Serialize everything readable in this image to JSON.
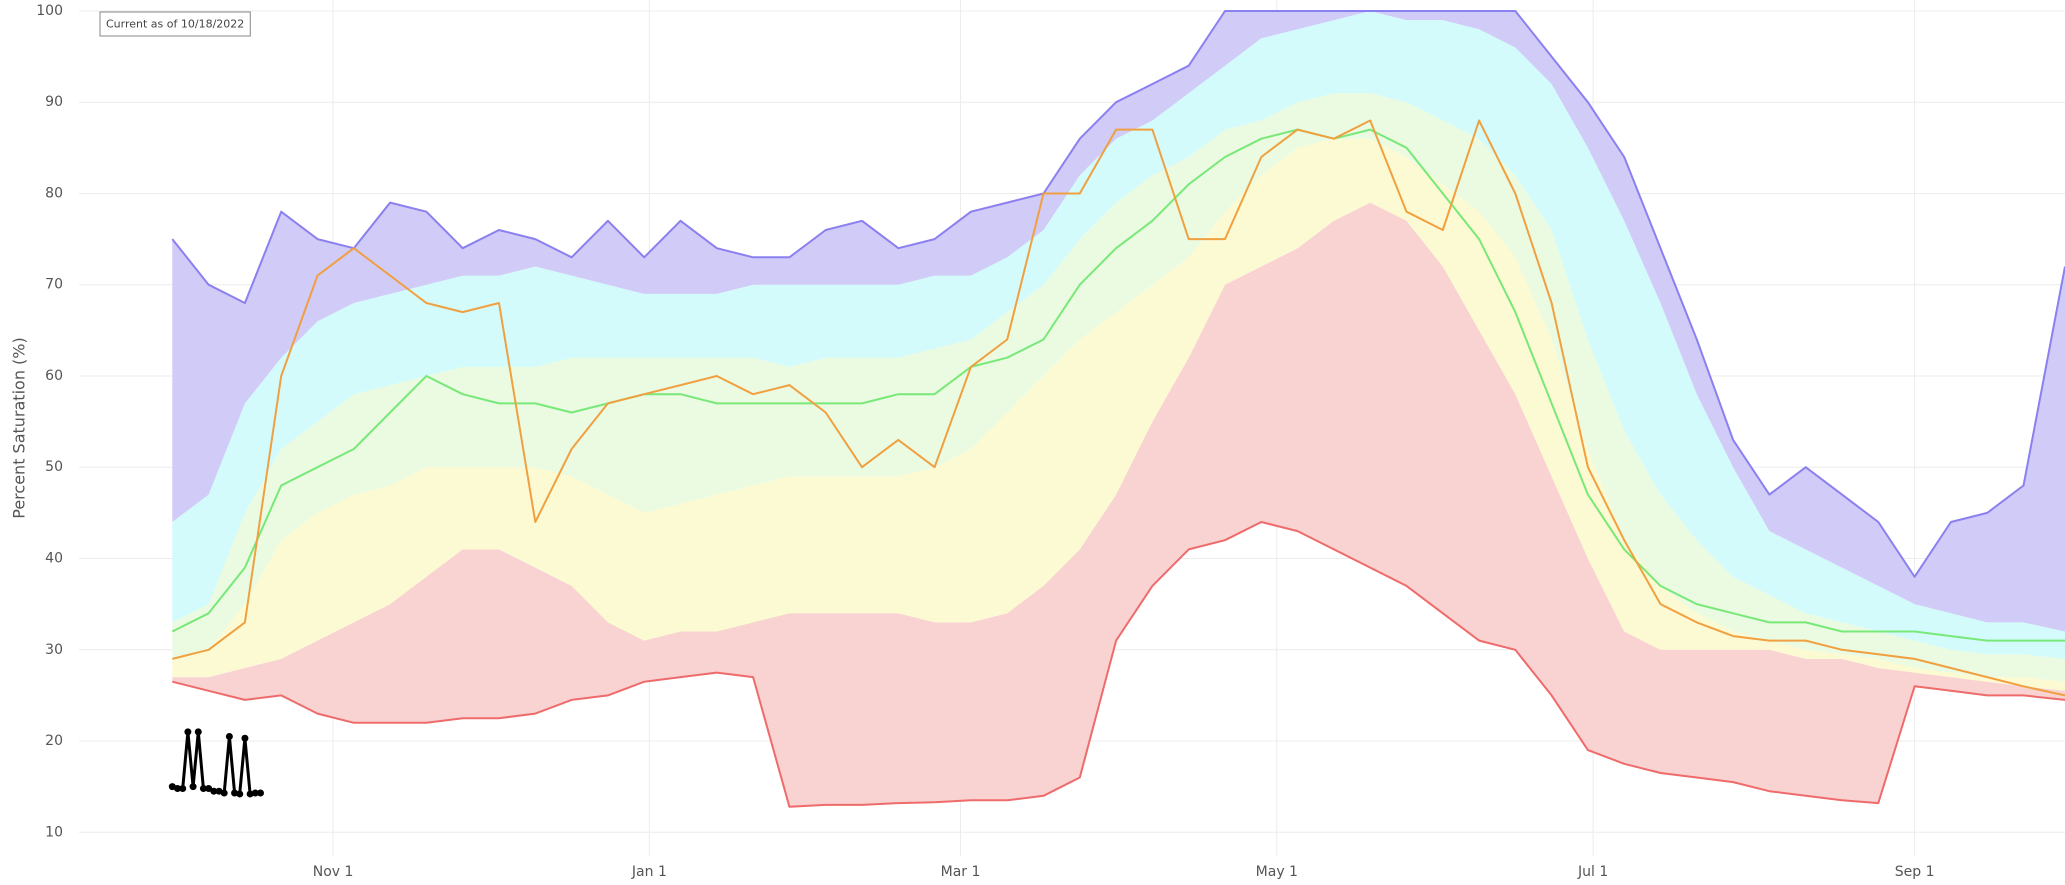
{
  "chart_data": {
    "type": "line",
    "annotation": "Current as of 10/18/2022",
    "y_label": "Percent Saturation (%)",
    "x": [
      "Oct 1",
      "Oct 8",
      "Oct 15",
      "Oct 22",
      "Oct 29",
      "Nov 5",
      "Nov 12",
      "Nov 19",
      "Nov 26",
      "Dec 3",
      "Dec 10",
      "Dec 17",
      "Dec 24",
      "Dec 31",
      "Jan 7",
      "Jan 14",
      "Jan 21",
      "Jan 28",
      "Feb 4",
      "Feb 11",
      "Feb 18",
      "Feb 25",
      "Mar 3",
      "Mar 10",
      "Mar 17",
      "Mar 24",
      "Mar 31",
      "Apr 7",
      "Apr 14",
      "Apr 21",
      "Apr 28",
      "May 5",
      "May 12",
      "May 19",
      "May 26",
      "Jun 2",
      "Jun 9",
      "Jun 16",
      "Jun 23",
      "Jun 30",
      "Jul 7",
      "Jul 14",
      "Jul 21",
      "Jul 28",
      "Aug 4",
      "Aug 11",
      "Aug 18",
      "Aug 25",
      "Sep 1",
      "Sep 8",
      "Sep 15",
      "Sep 22",
      "Sep 30"
    ],
    "series": [
      {
        "color": "#ef6b6b",
        "values": [
          26.5,
          25.5,
          24.5,
          25,
          23,
          22,
          22,
          22,
          22.5,
          22.5,
          23,
          24.5,
          25,
          26.5,
          27,
          27.5,
          27,
          12.8,
          13,
          13,
          13.2,
          13.3,
          13.5,
          13.5,
          14,
          16,
          31,
          37,
          41,
          42,
          44,
          43,
          41,
          39,
          37,
          34,
          31,
          30,
          25,
          19,
          17.5,
          16.5,
          16,
          15.5,
          14.5,
          14,
          13.5,
          13.2,
          26,
          25.5,
          25,
          25,
          24.5
        ]
      },
      {
        "fill": "#f9d2d2",
        "values": [
          27,
          27,
          28,
          29,
          31,
          33,
          35,
          38,
          41,
          41,
          39,
          37,
          33,
          31,
          32,
          32,
          33,
          34,
          34,
          34,
          34,
          33,
          33,
          34,
          37,
          41,
          47,
          55,
          62,
          70,
          72,
          74,
          77,
          79,
          77,
          72,
          65,
          58,
          49,
          40,
          32,
          30,
          30,
          30,
          30,
          29,
          29,
          28,
          27.5,
          27,
          26.5,
          26,
          25.5
        ]
      },
      {
        "fill": "#fcfad2",
        "values": [
          29,
          30,
          35,
          42,
          45,
          47,
          48,
          50,
          50,
          50,
          50,
          49,
          47,
          45,
          46,
          47,
          48,
          49,
          49,
          49,
          49,
          50,
          52,
          56,
          60,
          64,
          67,
          70,
          73,
          78,
          82,
          85,
          86,
          86,
          84,
          81,
          78,
          73,
          64,
          52,
          42,
          37,
          34,
          32,
          31,
          30,
          29.5,
          29,
          28,
          27.5,
          27,
          27,
          26.5
        ]
      },
      {
        "fill": "#eafbe2",
        "values": [
          33,
          35,
          45,
          52,
          55,
          58,
          59,
          60,
          61,
          61,
          61,
          62,
          62,
          62,
          62,
          62,
          62,
          61,
          62,
          62,
          62,
          63,
          64,
          67,
          70,
          75,
          79,
          82,
          84,
          87,
          88,
          90,
          91,
          91,
          90,
          88,
          86,
          82,
          76,
          64,
          54,
          47,
          42,
          38,
          36,
          34,
          33,
          32,
          31,
          30,
          29.5,
          29.5,
          29
        ]
      },
      {
        "fill": "#d3fbfb",
        "values": [
          44,
          47,
          57,
          62,
          66,
          68,
          69,
          70,
          71,
          71,
          72,
          71,
          70,
          69,
          69,
          69,
          70,
          70,
          70,
          70,
          70,
          71,
          71,
          73,
          76,
          82,
          86,
          88,
          91,
          94,
          97,
          98,
          99,
          100,
          99,
          99,
          98,
          96,
          92,
          85,
          77,
          68,
          58,
          50,
          43,
          41,
          39,
          37,
          35,
          34,
          33,
          33,
          32
        ]
      },
      {
        "fill": "#d0cbf7",
        "color": "#8a80ef",
        "values": [
          75,
          70,
          68,
          78,
          75,
          74,
          79,
          78,
          74,
          76,
          75,
          73,
          77,
          73,
          77,
          74,
          73,
          73,
          76,
          77,
          74,
          75,
          78,
          79,
          80,
          86,
          90,
          92,
          94,
          100,
          100,
          100,
          100,
          100,
          100,
          100,
          100,
          100,
          95,
          90,
          84,
          74,
          64,
          53,
          47,
          50,
          47,
          44,
          38,
          44,
          45,
          48,
          72
        ]
      },
      {
        "color": "#78e878",
        "values": [
          32,
          34,
          39,
          48,
          50,
          52,
          56,
          60,
          58,
          57,
          57,
          56,
          57,
          58,
          58,
          57,
          57,
          57,
          57,
          57,
          58,
          58,
          61,
          62,
          64,
          70,
          74,
          77,
          81,
          84,
          86,
          87,
          86,
          87,
          85,
          80,
          75,
          67,
          57,
          47,
          41,
          37,
          35,
          34,
          33,
          33,
          32,
          32,
          32,
          31.5,
          31,
          31,
          31
        ]
      },
      {
        "color": "#f0a040",
        "values": [
          29,
          30,
          33,
          60,
          71,
          74,
          71,
          68,
          67,
          68,
          44,
          52,
          57,
          58,
          59,
          60,
          58,
          59,
          56,
          50,
          53,
          50,
          61,
          64,
          80,
          80,
          87,
          87,
          75,
          75,
          84,
          87,
          86,
          88,
          78,
          76,
          88,
          80,
          68,
          50,
          42,
          35,
          33,
          31.5,
          31,
          31,
          30,
          29.5,
          29,
          28,
          27,
          26,
          25
        ]
      },
      {
        "color": "#000000",
        "markers": true,
        "x": [
          "Oct 1",
          "Oct 2",
          "Oct 3",
          "Oct 4",
          "Oct 5",
          "Oct 6",
          "Oct 7",
          "Oct 8",
          "Oct 9",
          "Oct 10",
          "Oct 11",
          "Oct 12",
          "Oct 13",
          "Oct 14",
          "Oct 15",
          "Oct 16",
          "Oct 17",
          "Oct 18"
        ],
        "values": [
          15,
          14.8,
          14.8,
          21,
          15,
          21,
          14.8,
          14.8,
          14.5,
          14.5,
          14.3,
          20.5,
          14.3,
          14.2,
          20.3,
          14.2,
          14.3,
          14.3
        ]
      }
    ],
    "xlim": [
      "Sep 13",
      "Sep 30"
    ],
    "xticks": [
      "Nov 1",
      "Jan 1",
      "Mar 1",
      "May 1",
      "Jul 1",
      "Sep 1"
    ],
    "ylim": [
      7.4,
      101.2
    ],
    "yticks": [
      10,
      20,
      30,
      40,
      50,
      60,
      70,
      80,
      90,
      100
    ],
    "grid": true
  }
}
